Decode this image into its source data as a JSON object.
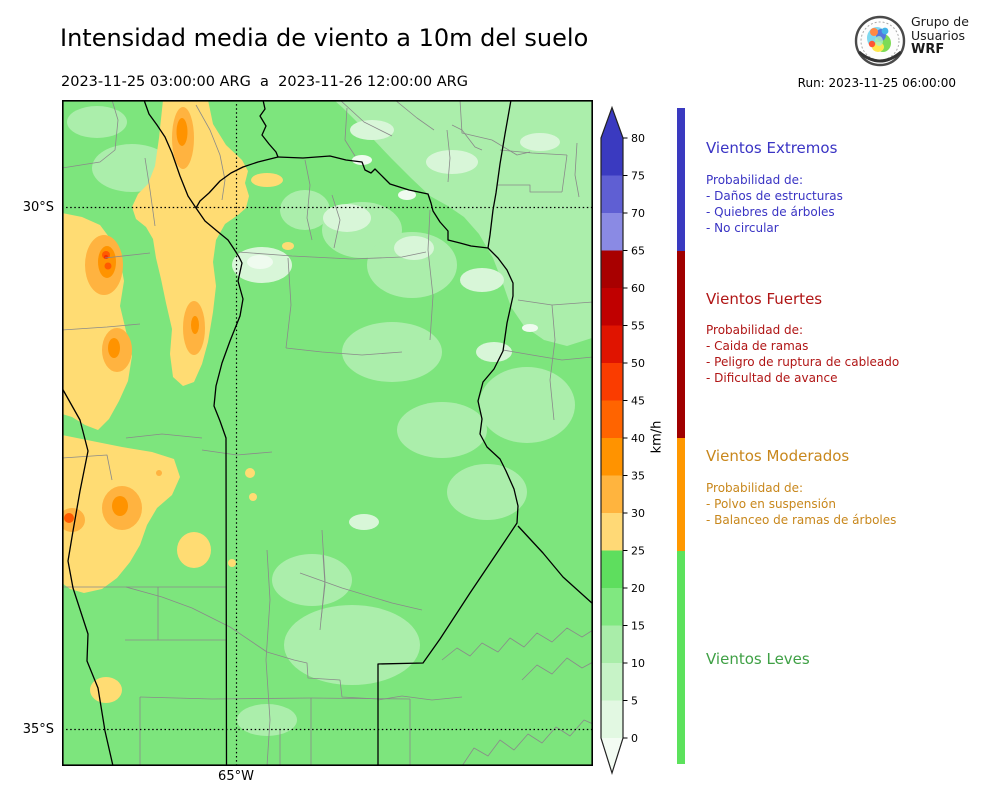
{
  "header": {
    "title": "Intensidad media de viento a 10m del suelo",
    "period": "2023-11-25 03:00:00 ARG  a  2023-11-26 12:00:00 ARG",
    "run_label": "Run: 2023-11-25 06:00:00",
    "logo": {
      "line1": "Grupo de",
      "line2": "Usuarios",
      "line3": "WRF"
    }
  },
  "map_axes": {
    "lat_labels": [
      {
        "text": "30°S"
      },
      {
        "text": "35°S"
      }
    ],
    "lon_labels": [
      {
        "text": "65°W"
      }
    ]
  },
  "palette": {
    "green_mid": "#7de57d",
    "green_light": "#abeeab",
    "green_pale": "#d8f6d8",
    "green_white": "#effbef",
    "yellow": "#ffdc73",
    "orange": "#ffb340",
    "orange_deep": "#ff9300",
    "red_orange": "#ff5a00",
    "red": "#f53000",
    "border_black": "#000000",
    "dept_gray": "#8a8a8a"
  },
  "colorbar": {
    "unit": "km/h",
    "tick_values": [
      0,
      5,
      10,
      15,
      20,
      25,
      30,
      35,
      40,
      45,
      50,
      55,
      60,
      65,
      70,
      75,
      80
    ],
    "segment_colors": [
      "#e2f8e2",
      "#c7f3c7",
      "#a9eda9",
      "#80e880",
      "#5ede5e",
      "#ffd976",
      "#ffb43e",
      "#ff9300",
      "#ff6400",
      "#fa3c00",
      "#e01400",
      "#c00000",
      "#a80000",
      "#8a8ae4",
      "#5f5fd3",
      "#3a3ac0"
    ],
    "under_color": "#f3fcf3",
    "over_color": "#3a3ac0"
  },
  "legend": {
    "bar_segments": [
      {
        "color": "#5ce25c",
        "kmh_from": -3.4,
        "kmh_to": 25
      },
      {
        "color": "#ff9800",
        "kmh_from": 25,
        "kmh_to": 40
      },
      {
        "color": "#a00000",
        "kmh_from": 40,
        "kmh_to": 65
      },
      {
        "color": "#3a3ac0",
        "kmh_from": 65,
        "kmh_to": 84
      }
    ],
    "categories": [
      {
        "title": "Vientos Extremos",
        "text_color": "#3a34c4",
        "prob_label": "Probabilidad de:",
        "items": [
          "- Daños de estructuras",
          "- Quiebres de árboles",
          "- No circular"
        ]
      },
      {
        "title": "Vientos Fuertes",
        "text_color": "#b01515",
        "prob_label": "Probabilidad de:",
        "items": [
          "- Caida de ramas",
          "- Peligro de ruptura de cableado",
          "- Dificultad de avance"
        ]
      },
      {
        "title": "Vientos Moderados",
        "text_color": "#c8871c",
        "prob_label": "Probabilidad de:",
        "items": [
          "- Polvo en suspensión",
          "- Balanceo de ramas de árboles"
        ]
      },
      {
        "title": "Vientos Leves",
        "text_color": "#3fa045",
        "prob_label": "",
        "items": []
      }
    ]
  },
  "chart_data": {
    "type": "heatmap",
    "subtype": "filled_contour_weather_map",
    "title": "Intensidad media de viento a 10m del suelo",
    "period_start": "2023-11-25 03:00:00 ARG",
    "period_end": "2023-11-26 12:00:00 ARG",
    "model_run": "Run: 2023-11-25 06:00:00",
    "variable": "mean wind speed at 10 m above ground",
    "unit": "km/h",
    "levels_kmh": [
      0,
      5,
      10,
      15,
      20,
      25,
      30,
      35,
      40,
      45,
      50,
      55,
      60,
      65,
      70,
      75,
      80
    ],
    "level_colors": [
      "#e2f8e2",
      "#c7f3c7",
      "#a9eda9",
      "#80e880",
      "#5ede5e",
      "#ffd976",
      "#ffb43e",
      "#ff9300",
      "#ff6400",
      "#fa3c00",
      "#e01400",
      "#c00000",
      "#a80000",
      "#8a8ae4",
      "#5f5fd3",
      "#3a3ac0"
    ],
    "gridlines": {
      "lat": [
        "30°S",
        "35°S"
      ],
      "lon": [
        "65°W"
      ]
    },
    "legend_position": "right",
    "features": [
      {
        "range_kmh": "25-40",
        "color_family": "yellow-orange",
        "location": "elongated NNW-SSE band near top-left and large patches over the western third (sierras), plus small spots near map center-west and bottom-left"
      },
      {
        "range_kmh": "40-50",
        "color_family": "deep orange / red-orange cores",
        "location": "small cores inside the western orange areas around 30°S-31.5°S"
      },
      {
        "range_kmh": "10-25",
        "color_family": "greens",
        "location": "rest of the domain; lighter greens (10-15 km/h) dominate the northeast quadrant"
      }
    ],
    "categories_scale": [
      {
        "label": "Vientos Leves",
        "kmh": "0-25"
      },
      {
        "label": "Vientos Moderados",
        "kmh": "25-40"
      },
      {
        "label": "Vientos Fuertes",
        "kmh": "40-65"
      },
      {
        "label": "Vientos Extremos",
        "kmh": "65+"
      }
    ]
  }
}
